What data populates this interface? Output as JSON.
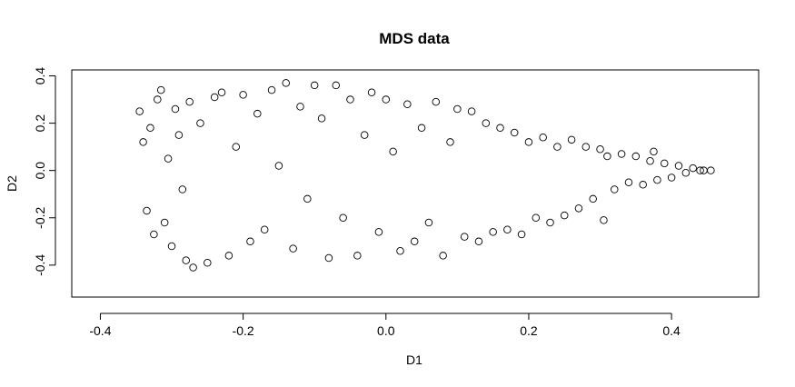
{
  "chart_data": {
    "type": "scatter",
    "title": "MDS data",
    "xlabel": "D1",
    "ylabel": "D2",
    "xlim": [
      -0.4,
      0.5
    ],
    "ylim": [
      -0.5,
      0.4
    ],
    "x_ticks": [
      -0.4,
      -0.2,
      0.0,
      0.2,
      0.4
    ],
    "x_tick_labels": [
      "-0.4",
      "-0.2",
      "0.0",
      "0.2",
      "0.4"
    ],
    "y_ticks": [
      -0.4,
      -0.2,
      0.0,
      0.2,
      0.4
    ],
    "y_tick_labels": [
      "-0.4",
      "-0.2",
      "0.0",
      "0.2",
      "0.4"
    ],
    "grid": false,
    "point_shape": "open-circle",
    "point_color": "#000000",
    "points": [
      [
        -0.345,
        0.25
      ],
      [
        -0.34,
        0.12
      ],
      [
        -0.335,
        -0.17
      ],
      [
        -0.33,
        0.18
      ],
      [
        -0.325,
        -0.27
      ],
      [
        -0.32,
        0.3
      ],
      [
        -0.315,
        0.34
      ],
      [
        -0.31,
        -0.22
      ],
      [
        -0.305,
        0.05
      ],
      [
        -0.3,
        -0.32
      ],
      [
        -0.295,
        0.26
      ],
      [
        -0.29,
        0.15
      ],
      [
        -0.285,
        -0.08
      ],
      [
        -0.28,
        -0.38
      ],
      [
        -0.275,
        0.29
      ],
      [
        -0.27,
        -0.41
      ],
      [
        -0.26,
        0.2
      ],
      [
        -0.25,
        -0.39
      ],
      [
        -0.24,
        0.31
      ],
      [
        -0.23,
        0.33
      ],
      [
        -0.22,
        -0.36
      ],
      [
        -0.21,
        0.1
      ],
      [
        -0.2,
        0.32
      ],
      [
        -0.19,
        -0.3
      ],
      [
        -0.18,
        0.24
      ],
      [
        -0.17,
        -0.25
      ],
      [
        -0.16,
        0.34
      ],
      [
        -0.15,
        0.02
      ],
      [
        -0.14,
        0.37
      ],
      [
        -0.13,
        -0.33
      ],
      [
        -0.12,
        0.27
      ],
      [
        -0.11,
        -0.12
      ],
      [
        -0.1,
        0.36
      ],
      [
        -0.09,
        0.22
      ],
      [
        -0.08,
        -0.37
      ],
      [
        -0.07,
        0.36
      ],
      [
        -0.06,
        -0.2
      ],
      [
        -0.05,
        0.3
      ],
      [
        -0.04,
        -0.36
      ],
      [
        -0.03,
        0.15
      ],
      [
        -0.02,
        0.33
      ],
      [
        -0.01,
        -0.26
      ],
      [
        0.0,
        0.3
      ],
      [
        0.01,
        0.08
      ],
      [
        0.02,
        -0.34
      ],
      [
        0.03,
        0.28
      ],
      [
        0.04,
        -0.3
      ],
      [
        0.05,
        0.18
      ],
      [
        0.06,
        -0.22
      ],
      [
        0.07,
        0.29
      ],
      [
        0.08,
        -0.36
      ],
      [
        0.09,
        0.12
      ],
      [
        0.1,
        0.26
      ],
      [
        0.11,
        -0.28
      ],
      [
        0.12,
        0.25
      ],
      [
        0.13,
        -0.3
      ],
      [
        0.14,
        0.2
      ],
      [
        0.15,
        -0.26
      ],
      [
        0.16,
        0.18
      ],
      [
        0.17,
        -0.25
      ],
      [
        0.18,
        0.16
      ],
      [
        0.19,
        -0.27
      ],
      [
        0.2,
        0.12
      ],
      [
        0.21,
        -0.2
      ],
      [
        0.22,
        0.14
      ],
      [
        0.23,
        -0.22
      ],
      [
        0.24,
        0.1
      ],
      [
        0.25,
        -0.19
      ],
      [
        0.26,
        0.13
      ],
      [
        0.27,
        -0.16
      ],
      [
        0.28,
        0.1
      ],
      [
        0.29,
        -0.12
      ],
      [
        0.3,
        0.09
      ],
      [
        0.305,
        -0.21
      ],
      [
        0.31,
        0.06
      ],
      [
        0.32,
        -0.08
      ],
      [
        0.33,
        0.07
      ],
      [
        0.34,
        -0.05
      ],
      [
        0.35,
        0.06
      ],
      [
        0.36,
        -0.06
      ],
      [
        0.37,
        0.04
      ],
      [
        0.375,
        0.08
      ],
      [
        0.38,
        -0.04
      ],
      [
        0.39,
        0.03
      ],
      [
        0.4,
        -0.03
      ],
      [
        0.41,
        0.02
      ],
      [
        0.42,
        -0.01
      ],
      [
        0.43,
        0.01
      ],
      [
        0.44,
        0.0
      ],
      [
        0.445,
        0.0
      ],
      [
        0.455,
        0.0
      ]
    ]
  }
}
